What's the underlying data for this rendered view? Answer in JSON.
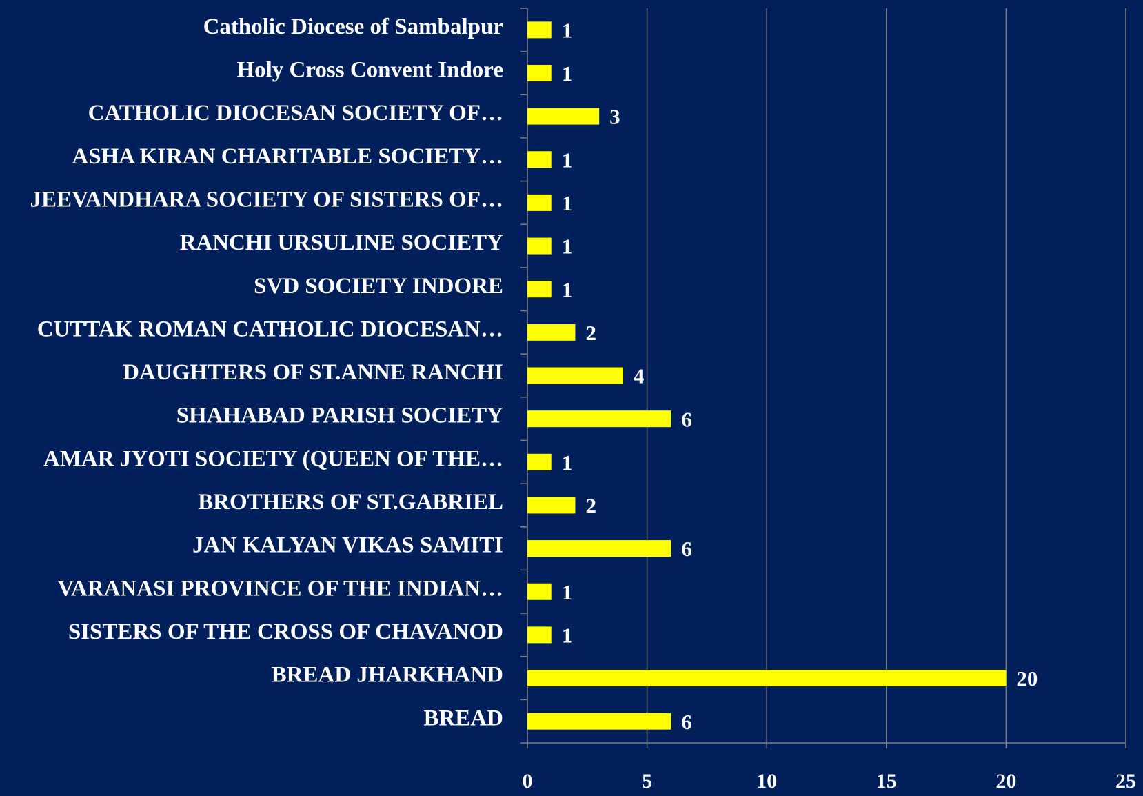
{
  "chart_data": {
    "type": "bar",
    "orientation": "horizontal",
    "categories": [
      "Catholic Diocese of Sambalpur",
      "Holy Cross Convent Indore",
      "CATHOLIC DIOCESAN SOCIETY OF…",
      "ASHA KIRAN CHARITABLE SOCIETY…",
      "JEEVANDHARA SOCIETY OF SISTERS OF…",
      "RANCHI URSULINE SOCIETY",
      "SVD SOCIETY  INDORE",
      "CUTTAK ROMAN CATHOLIC DIOCESAN…",
      "DAUGHTERS OF ST.ANNE RANCHI",
      "SHAHABAD PARISH SOCIETY",
      "AMAR JYOTI SOCIETY (QUEEN OF THE…",
      "BROTHERS OF ST.GABRIEL",
      "JAN KALYAN VIKAS SAMITI",
      "VARANASI PROVINCE OF THE INDIAN…",
      "SISTERS OF THE CROSS OF CHAVANOD",
      "BREAD JHARKHAND",
      "BREAD"
    ],
    "values": [
      1,
      1,
      3,
      1,
      1,
      1,
      1,
      2,
      4,
      6,
      1,
      2,
      6,
      1,
      1,
      20,
      6
    ],
    "color": "#ffff00",
    "xlim": [
      0,
      25
    ],
    "xticks": [
      0,
      5,
      10,
      15,
      20,
      25
    ],
    "grid": true
  }
}
